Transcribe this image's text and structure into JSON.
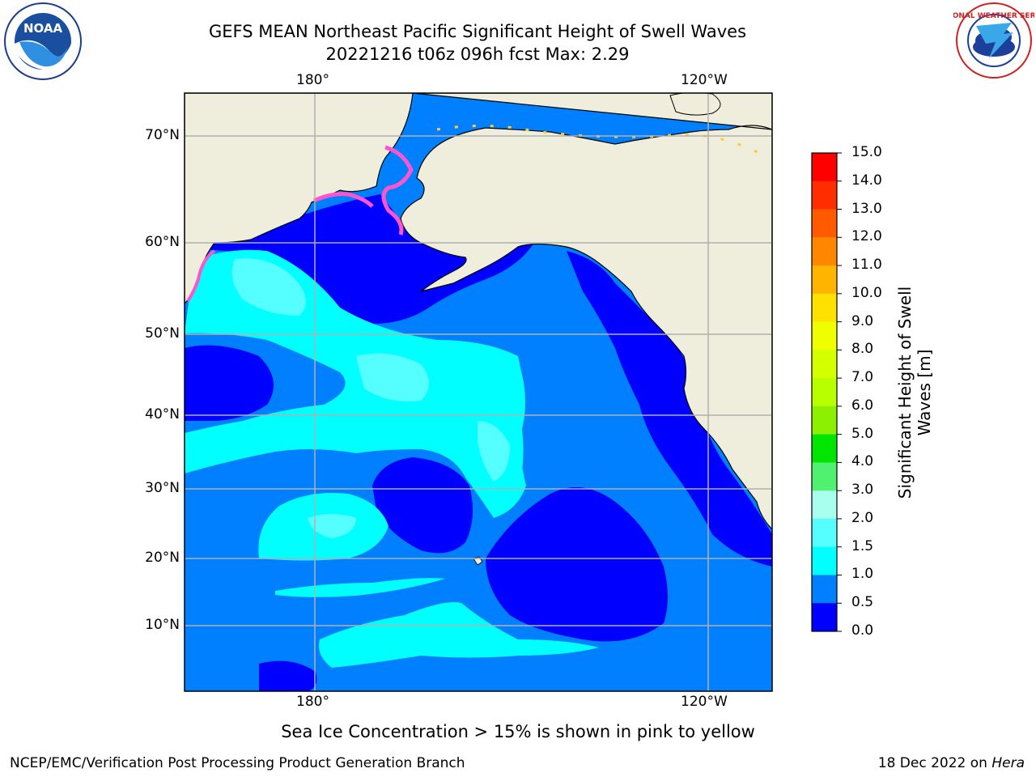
{
  "title": {
    "line1": "GEFS MEAN Northeast Pacific Significant Height of Swell Waves",
    "line2": "20221216 t06z 096h fcst   Max: 2.29"
  },
  "logos": {
    "left": {
      "name": "noaa-logo",
      "text": "NOAA"
    },
    "right": {
      "name": "national-weather-service-logo",
      "text": "NATIONAL WEATHER SERVICE"
    }
  },
  "map": {
    "top_lon_labels": [
      "180°",
      "120°W"
    ],
    "bottom_lon_labels": [
      "180°",
      "120°W"
    ],
    "lat_labels": [
      "70°N",
      "60°N",
      "50°N",
      "40°N",
      "30°N",
      "20°N",
      "10°N"
    ],
    "colors": {
      "land": "#efeedc",
      "frame": "#000000",
      "grid": "#b0b0b0"
    }
  },
  "colorbar": {
    "title": "Significant Height of Swell Waves [m]",
    "ticks": [
      "15.0",
      "14.0",
      "13.0",
      "12.0",
      "11.0",
      "10.0",
      "9.0",
      "8.0",
      "7.0",
      "6.0",
      "5.0",
      "4.0",
      "3.0",
      "2.0",
      "1.5",
      "1.0",
      "0.5",
      "0.0"
    ],
    "colors_top_to_bottom": [
      "#ff0000",
      "#ff2d00",
      "#ff5a00",
      "#ff8700",
      "#ffb400",
      "#ffe100",
      "#f0ff00",
      "#d4ff00",
      "#b8ff00",
      "#8cf000",
      "#00e600",
      "#50f070",
      "#a8ffee",
      "#55ffff",
      "#00ffff",
      "#0080ff",
      "#0000ff"
    ]
  },
  "note": "Sea Ice Concentration > 15% is shown in pink to yellow",
  "footer": {
    "left": "NCEP/EMC/Verification Post Processing Product Generation Branch",
    "right_prefix": "18 Dec 2022 on ",
    "right_host": "Hera"
  }
}
